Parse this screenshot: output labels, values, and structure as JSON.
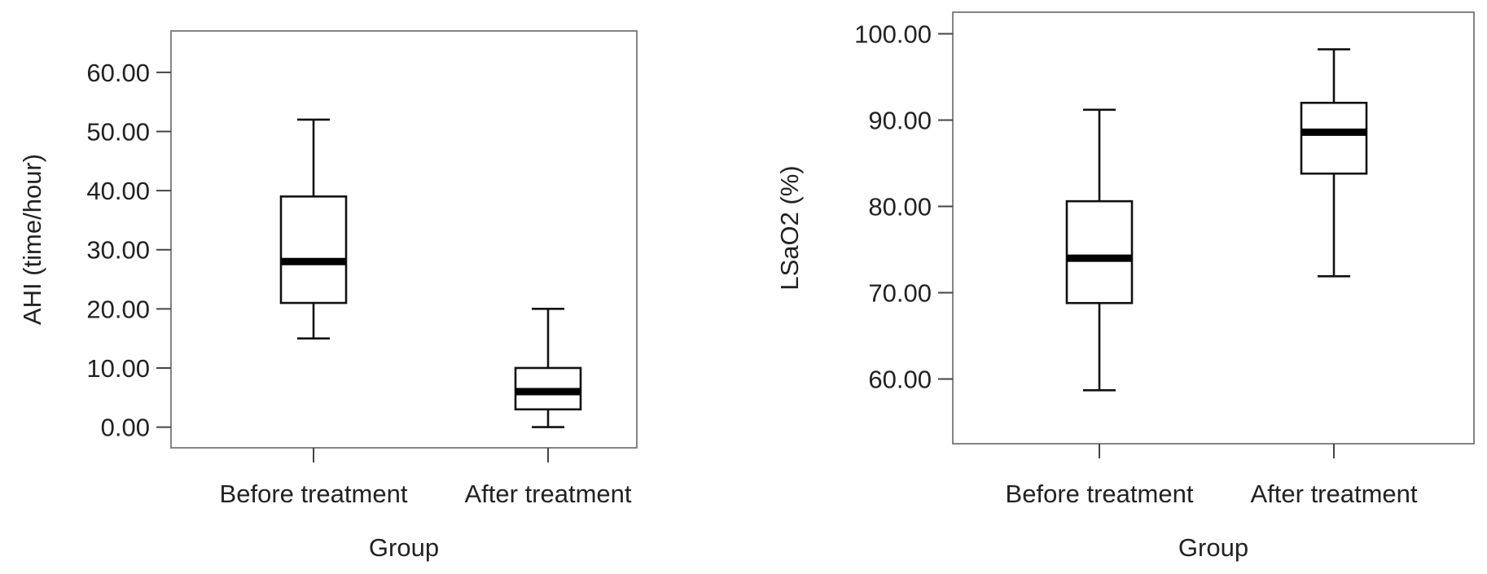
{
  "chart_data": [
    {
      "type": "box",
      "xlabel": "Group",
      "ylabel": "AHI (time/hour)",
      "categories": [
        "Before treatment",
        "After treatment"
      ],
      "ylim": [
        -3.5,
        67
      ],
      "yticks": [
        0,
        10,
        20,
        30,
        40,
        50,
        60
      ],
      "ytick_labels": [
        "0.00",
        "10.00",
        "20.00",
        "30.00",
        "40.00",
        "50.00",
        "60.00"
      ],
      "boxes": [
        {
          "min": 15,
          "q1": 21,
          "median": 28,
          "q3": 39,
          "max": 52
        },
        {
          "min": 0,
          "q1": 3,
          "median": 6,
          "q3": 10,
          "max": 20
        }
      ]
    },
    {
      "type": "box",
      "xlabel": "Group",
      "ylabel": "LSaO2 (%)",
      "categories": [
        "Before treatment",
        "After treatment"
      ],
      "ylim": [
        52.5,
        102.5
      ],
      "yticks": [
        60,
        70,
        80,
        90,
        100
      ],
      "ytick_labels": [
        "60.00",
        "70.00",
        "80.00",
        "90.00",
        "100.00"
      ],
      "boxes": [
        {
          "min": 58.7,
          "q1": 68.8,
          "median": 74.0,
          "q3": 80.6,
          "max": 91.2
        },
        {
          "min": 71.9,
          "q1": 83.8,
          "median": 88.6,
          "q3": 92.0,
          "max": 98.2
        }
      ]
    }
  ]
}
